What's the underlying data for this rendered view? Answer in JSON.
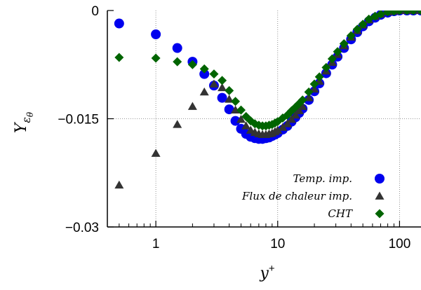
{
  "chart_data": {
    "type": "scatter",
    "x_scale": "log",
    "xlim": [
      0.4,
      150
    ],
    "ylim": [
      -0.03,
      0
    ],
    "x_ticks": [
      {
        "value": 1,
        "label": "1"
      },
      {
        "value": 10,
        "label": "10"
      },
      {
        "value": 100,
        "label": "100"
      }
    ],
    "y_ticks": [
      {
        "value": 0,
        "label": "0"
      },
      {
        "value": -0.015,
        "label": "−0.015"
      },
      {
        "value": -0.03,
        "label": "−0.03"
      }
    ],
    "grid": true,
    "xlabel": "y",
    "xlabel_sup": "+",
    "ylabel": "Y",
    "ylabel_sub": "ε",
    "ylabel_subsub": "θ",
    "legend_position": "bottom-right",
    "series": [
      {
        "name": "Temp. imp.",
        "color": "#0000ee",
        "marker": "circle",
        "x": [
          0.5,
          1.0,
          1.5,
          2.0,
          2.5,
          3.0,
          3.5,
          4.0,
          4.5,
          5.0,
          5.5,
          6.0,
          6.5,
          7.0,
          7.5,
          8.0,
          8.5,
          9.0,
          9.5,
          10,
          11,
          12,
          13,
          14,
          15,
          16,
          18,
          20,
          22,
          25,
          28,
          31,
          35,
          40,
          45,
          50,
          56,
          63,
          70,
          80,
          90,
          100,
          115,
          130,
          150
        ],
        "y": [
          -0.0018,
          -0.0033,
          -0.0052,
          -0.0071,
          -0.0088,
          -0.0104,
          -0.0121,
          -0.0137,
          -0.0153,
          -0.0164,
          -0.0171,
          -0.0175,
          -0.0177,
          -0.0178,
          -0.0178,
          -0.0177,
          -0.0176,
          -0.0174,
          -0.0172,
          -0.017,
          -0.0165,
          -0.016,
          -0.0154,
          -0.0148,
          -0.0142,
          -0.0136,
          -0.0124,
          -0.0112,
          -0.0101,
          -0.0087,
          -0.0075,
          -0.0064,
          -0.0052,
          -0.004,
          -0.003,
          -0.0022,
          -0.0015,
          -0.001,
          -0.0006,
          -0.0003,
          -0.0001,
          0.0,
          0.0,
          0.0,
          0.0
        ]
      },
      {
        "name": "Flux de chaleur imp.",
        "color": "#333333",
        "marker": "triangle",
        "x": [
          0.5,
          1.0,
          1.5,
          2.0,
          2.5,
          3.0,
          3.5,
          4.0,
          4.5,
          5.0,
          5.5,
          6.0,
          6.5,
          7.0,
          7.5,
          8.0,
          8.5,
          9.0,
          9.5,
          10,
          11,
          12,
          13,
          14,
          15,
          16,
          18,
          20,
          22,
          25,
          28,
          31,
          35,
          40,
          45,
          50,
          56,
          63,
          70,
          80,
          90,
          100,
          115,
          130,
          150
        ],
        "y": [
          -0.0242,
          -0.0198,
          -0.0158,
          -0.0133,
          -0.0113,
          -0.0102,
          -0.0107,
          -0.0123,
          -0.0138,
          -0.0151,
          -0.016,
          -0.0166,
          -0.0169,
          -0.0171,
          -0.0172,
          -0.0172,
          -0.0171,
          -0.017,
          -0.0168,
          -0.0166,
          -0.0162,
          -0.0157,
          -0.0151,
          -0.0145,
          -0.0139,
          -0.0133,
          -0.0121,
          -0.0109,
          -0.0098,
          -0.0084,
          -0.0072,
          -0.0061,
          -0.0049,
          -0.0037,
          -0.0028,
          -0.002,
          -0.0013,
          -0.0008,
          -0.0005,
          -0.0002,
          -0.0001,
          0.0,
          0.0,
          0.0,
          0.0
        ]
      },
      {
        "name": "CHT",
        "color": "#006400",
        "marker": "diamond",
        "x": [
          0.5,
          1.0,
          1.5,
          2.0,
          2.5,
          3.0,
          3.5,
          4.0,
          4.5,
          5.0,
          5.5,
          6.0,
          6.5,
          7.0,
          7.5,
          8.0,
          8.5,
          9.0,
          9.5,
          10,
          11,
          12,
          13,
          14,
          15,
          16,
          18,
          20,
          22,
          25,
          28,
          31,
          35,
          40,
          45,
          50,
          56,
          63,
          70,
          80,
          90,
          100,
          115,
          130,
          150
        ],
        "y": [
          -0.0065,
          -0.0066,
          -0.0071,
          -0.0075,
          -0.0081,
          -0.0088,
          -0.0097,
          -0.0111,
          -0.0126,
          -0.0138,
          -0.0147,
          -0.0153,
          -0.0157,
          -0.0159,
          -0.016,
          -0.016,
          -0.0159,
          -0.0158,
          -0.0156,
          -0.0154,
          -0.0149,
          -0.0145,
          -0.0139,
          -0.0134,
          -0.0129,
          -0.0124,
          -0.0113,
          -0.0102,
          -0.0092,
          -0.0079,
          -0.0067,
          -0.0057,
          -0.0046,
          -0.0035,
          -0.0026,
          -0.0019,
          -0.0012,
          -0.0008,
          -0.0005,
          -0.0002,
          -0.0001,
          0.0,
          0.0,
          0.0,
          0.0
        ]
      }
    ]
  }
}
